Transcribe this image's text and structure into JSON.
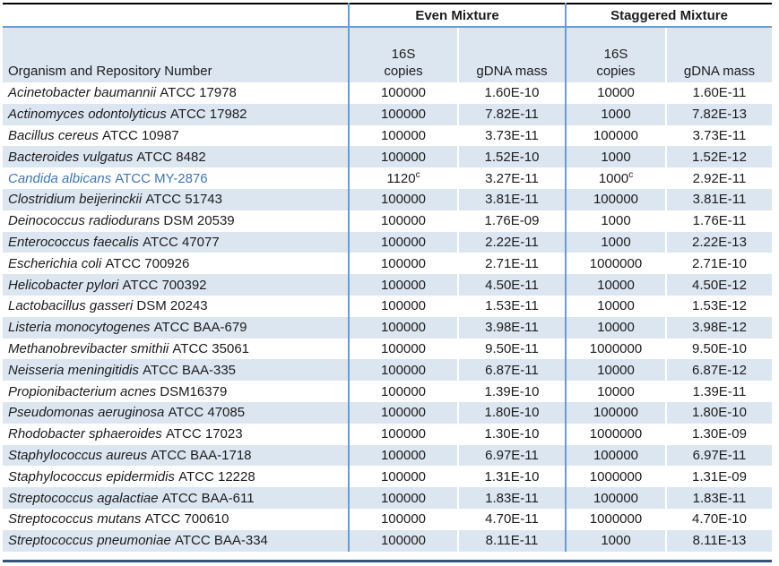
{
  "table": {
    "org_header": "Organism and Repository Number",
    "group_headers": [
      "Even Mixture",
      "Staggered Mixture"
    ],
    "sub_header": {
      "copies_top": "16S",
      "copies_bottom": "copies",
      "gdna": "gDNA mass"
    },
    "footnote_marker": "c",
    "rows": [
      {
        "species": "Acinetobacter baumannii",
        "repo": "ATCC 17978",
        "even_copies": "100000",
        "even_mass": "1.60E-10",
        "stag_copies": "10000",
        "stag_mass": "1.60E-11"
      },
      {
        "species": "Actinomyces odontolyticus",
        "repo": "ATCC 17982",
        "even_copies": "100000",
        "even_mass": "7.82E-11",
        "stag_copies": "1000",
        "stag_mass": "7.82E-13"
      },
      {
        "species": "Bacillus cereus",
        "repo": "ATCC 10987",
        "even_copies": "100000",
        "even_mass": "3.73E-11",
        "stag_copies": "100000",
        "stag_mass": "3.73E-11"
      },
      {
        "species": "Bacteroides vulgatus",
        "repo": "ATCC 8482",
        "even_copies": "100000",
        "even_mass": "1.52E-10",
        "stag_copies": "1000",
        "stag_mass": "1.52E-12"
      },
      {
        "species": "Candida albicans",
        "repo": "ATCC MY-2876",
        "even_copies": "1120",
        "even_copies_sup": "c",
        "even_mass": "3.27E-11",
        "stag_copies": "1000",
        "stag_copies_sup": "c",
        "stag_mass": "2.92E-11",
        "highlight": true
      },
      {
        "species": "Clostridium beijerinckii",
        "repo": "ATCC 51743",
        "even_copies": "100000",
        "even_mass": "3.81E-11",
        "stag_copies": "100000",
        "stag_mass": "3.81E-11"
      },
      {
        "species": "Deinococcus radiodurans",
        "repo": "DSM 20539",
        "even_copies": "100000",
        "even_mass": "1.76E-09",
        "stag_copies": "1000",
        "stag_mass": "1.76E-11"
      },
      {
        "species": "Enterococcus faecalis",
        "repo": "ATCC 47077",
        "even_copies": "100000",
        "even_mass": "2.22E-11",
        "stag_copies": "1000",
        "stag_mass": "2.22E-13"
      },
      {
        "species": "Escherichia coli",
        "repo": "ATCC 700926",
        "even_copies": "100000",
        "even_mass": "2.71E-11",
        "stag_copies": "1000000",
        "stag_mass": "2.71E-10"
      },
      {
        "species": "Helicobacter pylori",
        "repo": "ATCC 700392",
        "even_copies": "100000",
        "even_mass": "4.50E-11",
        "stag_copies": "10000",
        "stag_mass": "4.50E-12"
      },
      {
        "species": "Lactobacillus gasseri",
        "repo": "DSM 20243",
        "even_copies": "100000",
        "even_mass": "1.53E-11",
        "stag_copies": "10000",
        "stag_mass": "1.53E-12"
      },
      {
        "species": "Listeria monocytogenes",
        "repo": "ATCC BAA-679",
        "even_copies": "100000",
        "even_mass": "3.98E-11",
        "stag_copies": "10000",
        "stag_mass": "3.98E-12"
      },
      {
        "species": "Methanobrevibacter smithii",
        "repo": "ATCC 35061",
        "even_copies": "100000",
        "even_mass": "9.50E-11",
        "stag_copies": "1000000",
        "stag_mass": "9.50E-10"
      },
      {
        "species": "Neisseria meningitidis",
        "repo": "ATCC BAA-335",
        "even_copies": "100000",
        "even_mass": "6.87E-11",
        "stag_copies": "10000",
        "stag_mass": "6.87E-12"
      },
      {
        "species": "Propionibacterium acnes",
        "repo": "DSM16379",
        "even_copies": "100000",
        "even_mass": "1.39E-10",
        "stag_copies": "10000",
        "stag_mass": "1.39E-11"
      },
      {
        "species": "Pseudomonas aeruginosa",
        "repo": "ATCC 47085",
        "even_copies": "100000",
        "even_mass": "1.80E-10",
        "stag_copies": "100000",
        "stag_mass": "1.80E-10"
      },
      {
        "species": "Rhodobacter sphaeroides",
        "repo": "ATCC 17023",
        "even_copies": "100000",
        "even_mass": "1.30E-10",
        "stag_copies": "1000000",
        "stag_mass": "1.30E-09"
      },
      {
        "species": "Staphylococcus aureus",
        "repo": "ATCC BAA-1718",
        "even_copies": "100000",
        "even_mass": "6.97E-11",
        "stag_copies": "100000",
        "stag_mass": "6.97E-11"
      },
      {
        "species": "Staphylococcus epidermidis",
        "repo": "ATCC 12228",
        "even_copies": "100000",
        "even_mass": "1.31E-10",
        "stag_copies": "1000000",
        "stag_mass": "1.31E-09"
      },
      {
        "species": "Streptococcus agalactiae",
        "repo": "ATCC BAA-611",
        "even_copies": "100000",
        "even_mass": "1.83E-11",
        "stag_copies": "100000",
        "stag_mass": "1.83E-11"
      },
      {
        "species": "Streptococcus mutans",
        "repo": "ATCC 700610",
        "even_copies": "100000",
        "even_mass": "4.70E-11",
        "stag_copies": "1000000",
        "stag_mass": "4.70E-10"
      },
      {
        "species": "Streptococcus pneumoniae",
        "repo": "ATCC BAA-334",
        "even_copies": "100000",
        "even_mass": "8.11E-11",
        "stag_copies": "1000",
        "stag_mass": "8.11E-13"
      }
    ]
  },
  "colors": {
    "row_shade": "#dce6f1",
    "grid_blue": "#6b9bd2",
    "highlight_text": "#3f76b5",
    "top_border": "#000000",
    "bottom_rule": "#33537d"
  }
}
